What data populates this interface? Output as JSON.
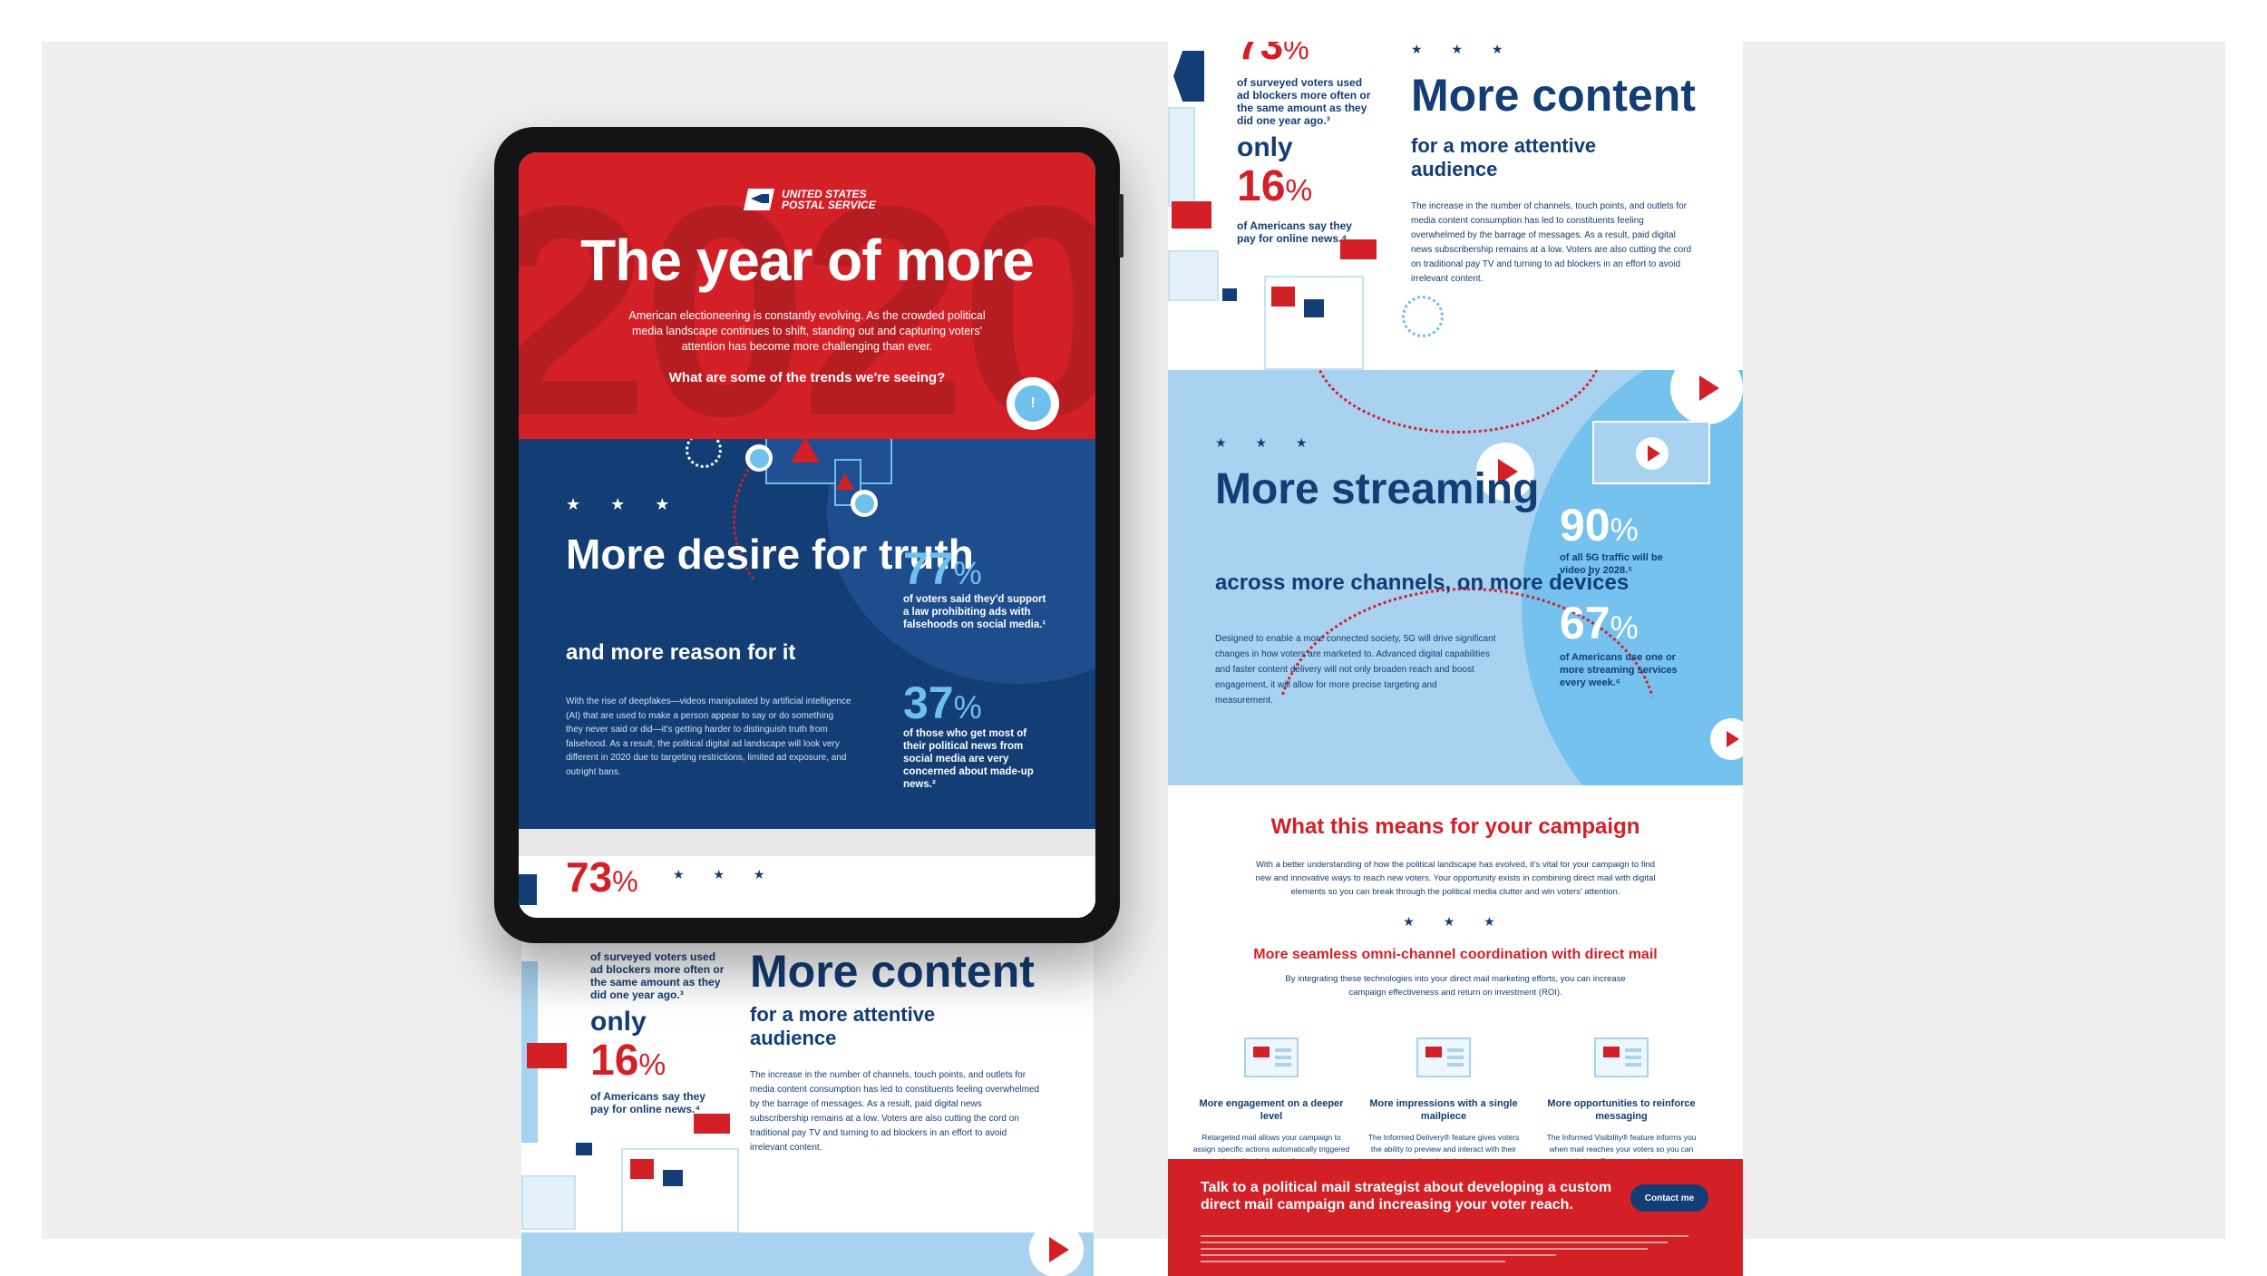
{
  "brand": {
    "logo_text": "UNITED STATES\nPOSTAL SERVICE",
    "colors": {
      "red": "#d32027",
      "navy": "#123d75",
      "sky": "#6fc0ec",
      "light_blue": "#a8d2ef"
    }
  },
  "hero": {
    "bg_year": "2020",
    "title": "The year of more",
    "intro": "American electioneering is constantly evolving. As the crowded political media landscape continues to shift, standing out and capturing voters' attention has become more challenging than ever.",
    "question": "What are some of the trends we're seeing?"
  },
  "truth": {
    "stars": "★ ★ ★",
    "title": "More desire for truth",
    "subtitle": "and more reason for it",
    "body": "With the rise of deepfakes—videos manipulated by artificial intelligence (AI) that are used to make a person appear to say or do something they never said or did—it's getting harder to distinguish truth from falsehood. As a result, the political digital ad landscape will look very different in 2020 due to targeting restrictions, limited ad exposure, and outright bans.",
    "stat1": {
      "value": "77",
      "unit": "%",
      "text": "of voters said they'd support a law prohibiting ads with falsehoods on social media.¹"
    },
    "stat2": {
      "value": "37",
      "unit": "%",
      "text": "of those who get most of their political news from social media are very concerned about made-up news.²"
    }
  },
  "content": {
    "stat73": {
      "value": "73",
      "unit": "%",
      "text": "of surveyed voters used ad blockers more often or the same amount as they did one year ago.³"
    },
    "only_label": "only",
    "stat16": {
      "value": "16",
      "unit": "%",
      "text": "of Americans say they pay for online news.⁴"
    },
    "stars": "★ ★ ★",
    "title": "More content",
    "subtitle": "for a more attentive audience",
    "body": "The increase in the number of channels, touch points, and outlets for media content consumption has led to constituents feeling overwhelmed by the barrage of messages. As a result, paid digital news subscribership remains at a low. Voters are also cutting the cord on traditional pay TV and turning to ad blockers in an effort to avoid irrelevant content."
  },
  "streaming": {
    "stars": "★ ★ ★",
    "title": "More streaming",
    "subtitle": "across more channels, on more devices",
    "body": "Designed to enable a more connected society, 5G will drive significant changes in how voters are marketed to. Advanced digital capabilities and faster content delivery will not only broaden reach and boost engagement, it will allow for more precise targeting and measurement.",
    "stat90": {
      "value": "90",
      "unit": "%",
      "text": "of all 5G traffic will be video by 2028.⁵"
    },
    "stat67": {
      "value": "67",
      "unit": "%",
      "text": "of Americans use one or more streaming services every week.⁶"
    }
  },
  "means": {
    "title": "What this means for your campaign",
    "intro": "With a better understanding of how the political landscape has evolved, it's vital for your campaign to find new and innovative ways to reach new voters. Your opportunity exists in combining direct mail with digital elements so you can break through the political media clutter and win voters' attention.",
    "stars": "★ ★ ★",
    "heading": "More seamless omni-channel coordination with direct mail",
    "paragraph": "By integrating these technologies into your direct mail marketing efforts, you can increase campaign effectiveness and return on investment (ROI).",
    "columns": [
      {
        "title": "More engagement on a deeper level",
        "text": "Retargeted mail allows your campaign to assign specific actions automatically triggered by online behavior of voters."
      },
      {
        "title": "More impressions with a single mailpiece",
        "text": "The Informed Delivery® feature gives voters the ability to preview and interact with their mail on their devices."
      },
      {
        "title": "More opportunities to reinforce messaging",
        "text": "The Informed Visibility® feature informs you when mail reaches your voters so you can optimize efforts across channels."
      }
    ]
  },
  "cta": {
    "text": "Talk to a political mail strategist about developing a custom direct mail campaign and increasing your voter reach.",
    "button": "Contact me"
  }
}
